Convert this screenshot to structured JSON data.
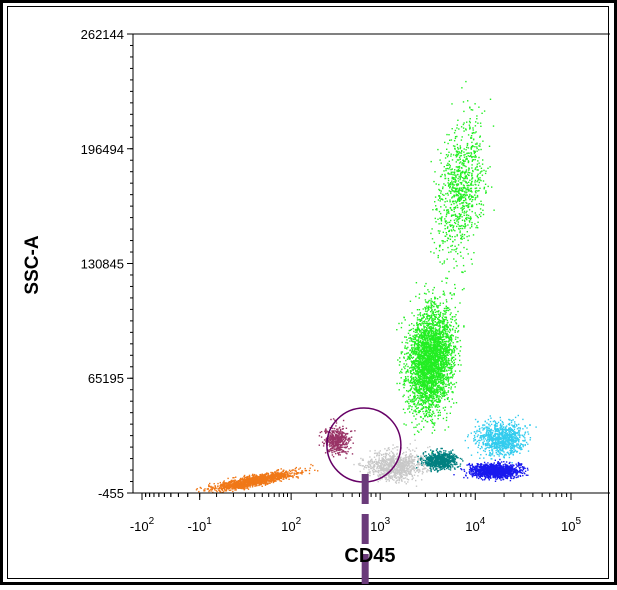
{
  "chart_data": {
    "type": "scatter",
    "title": "",
    "xlabel": "CD45",
    "ylabel": "SSC-A",
    "x_scale": "biexponential",
    "x_tick_labels": [
      {
        "value": -100,
        "base": "-10",
        "exp": "2"
      },
      {
        "value": -10,
        "base": "-10",
        "exp": "1"
      },
      {
        "value": 100,
        "base": "10",
        "exp": "2"
      },
      {
        "value": 1000,
        "base": "10",
        "exp": "3"
      },
      {
        "value": 10000,
        "base": "10",
        "exp": "4"
      },
      {
        "value": 100000,
        "base": "10",
        "exp": "5"
      }
    ],
    "y_ticks": [
      -455,
      65195,
      130845,
      196494,
      262144
    ],
    "y_tick_labels": [
      "-455",
      "65195",
      "130845",
      "196494",
      "262144"
    ],
    "ylim": [
      -455,
      262144
    ],
    "grid": false,
    "populations": [
      {
        "color": "#f07818",
        "x_range": [
          -50,
          700
        ],
        "y_center": 4000
      },
      {
        "color": "#993366",
        "x_center": 850,
        "y_center": 25000
      },
      {
        "color": "#c8c8c8",
        "x_range": [
          500,
          5000
        ],
        "y_center": 12000
      },
      {
        "color": "#22ee22",
        "x_center": 4000,
        "y_center": 70000
      },
      {
        "color": "#008080",
        "x_center": 7000,
        "y_center": 10000
      },
      {
        "color": "#33ccee",
        "x_center": 16000,
        "y_center": 28000
      },
      {
        "color": "#1a1aee",
        "x_center": 22000,
        "y_center": 7000
      }
    ],
    "gate": {
      "shape": "circle",
      "x_center": 900,
      "y_center": 27000,
      "color": "#660066"
    },
    "marker_line": {
      "x": 1000,
      "color": "#6a3a7a"
    }
  },
  "colors": {
    "frame_border": "#000000",
    "axis": "#000000"
  }
}
